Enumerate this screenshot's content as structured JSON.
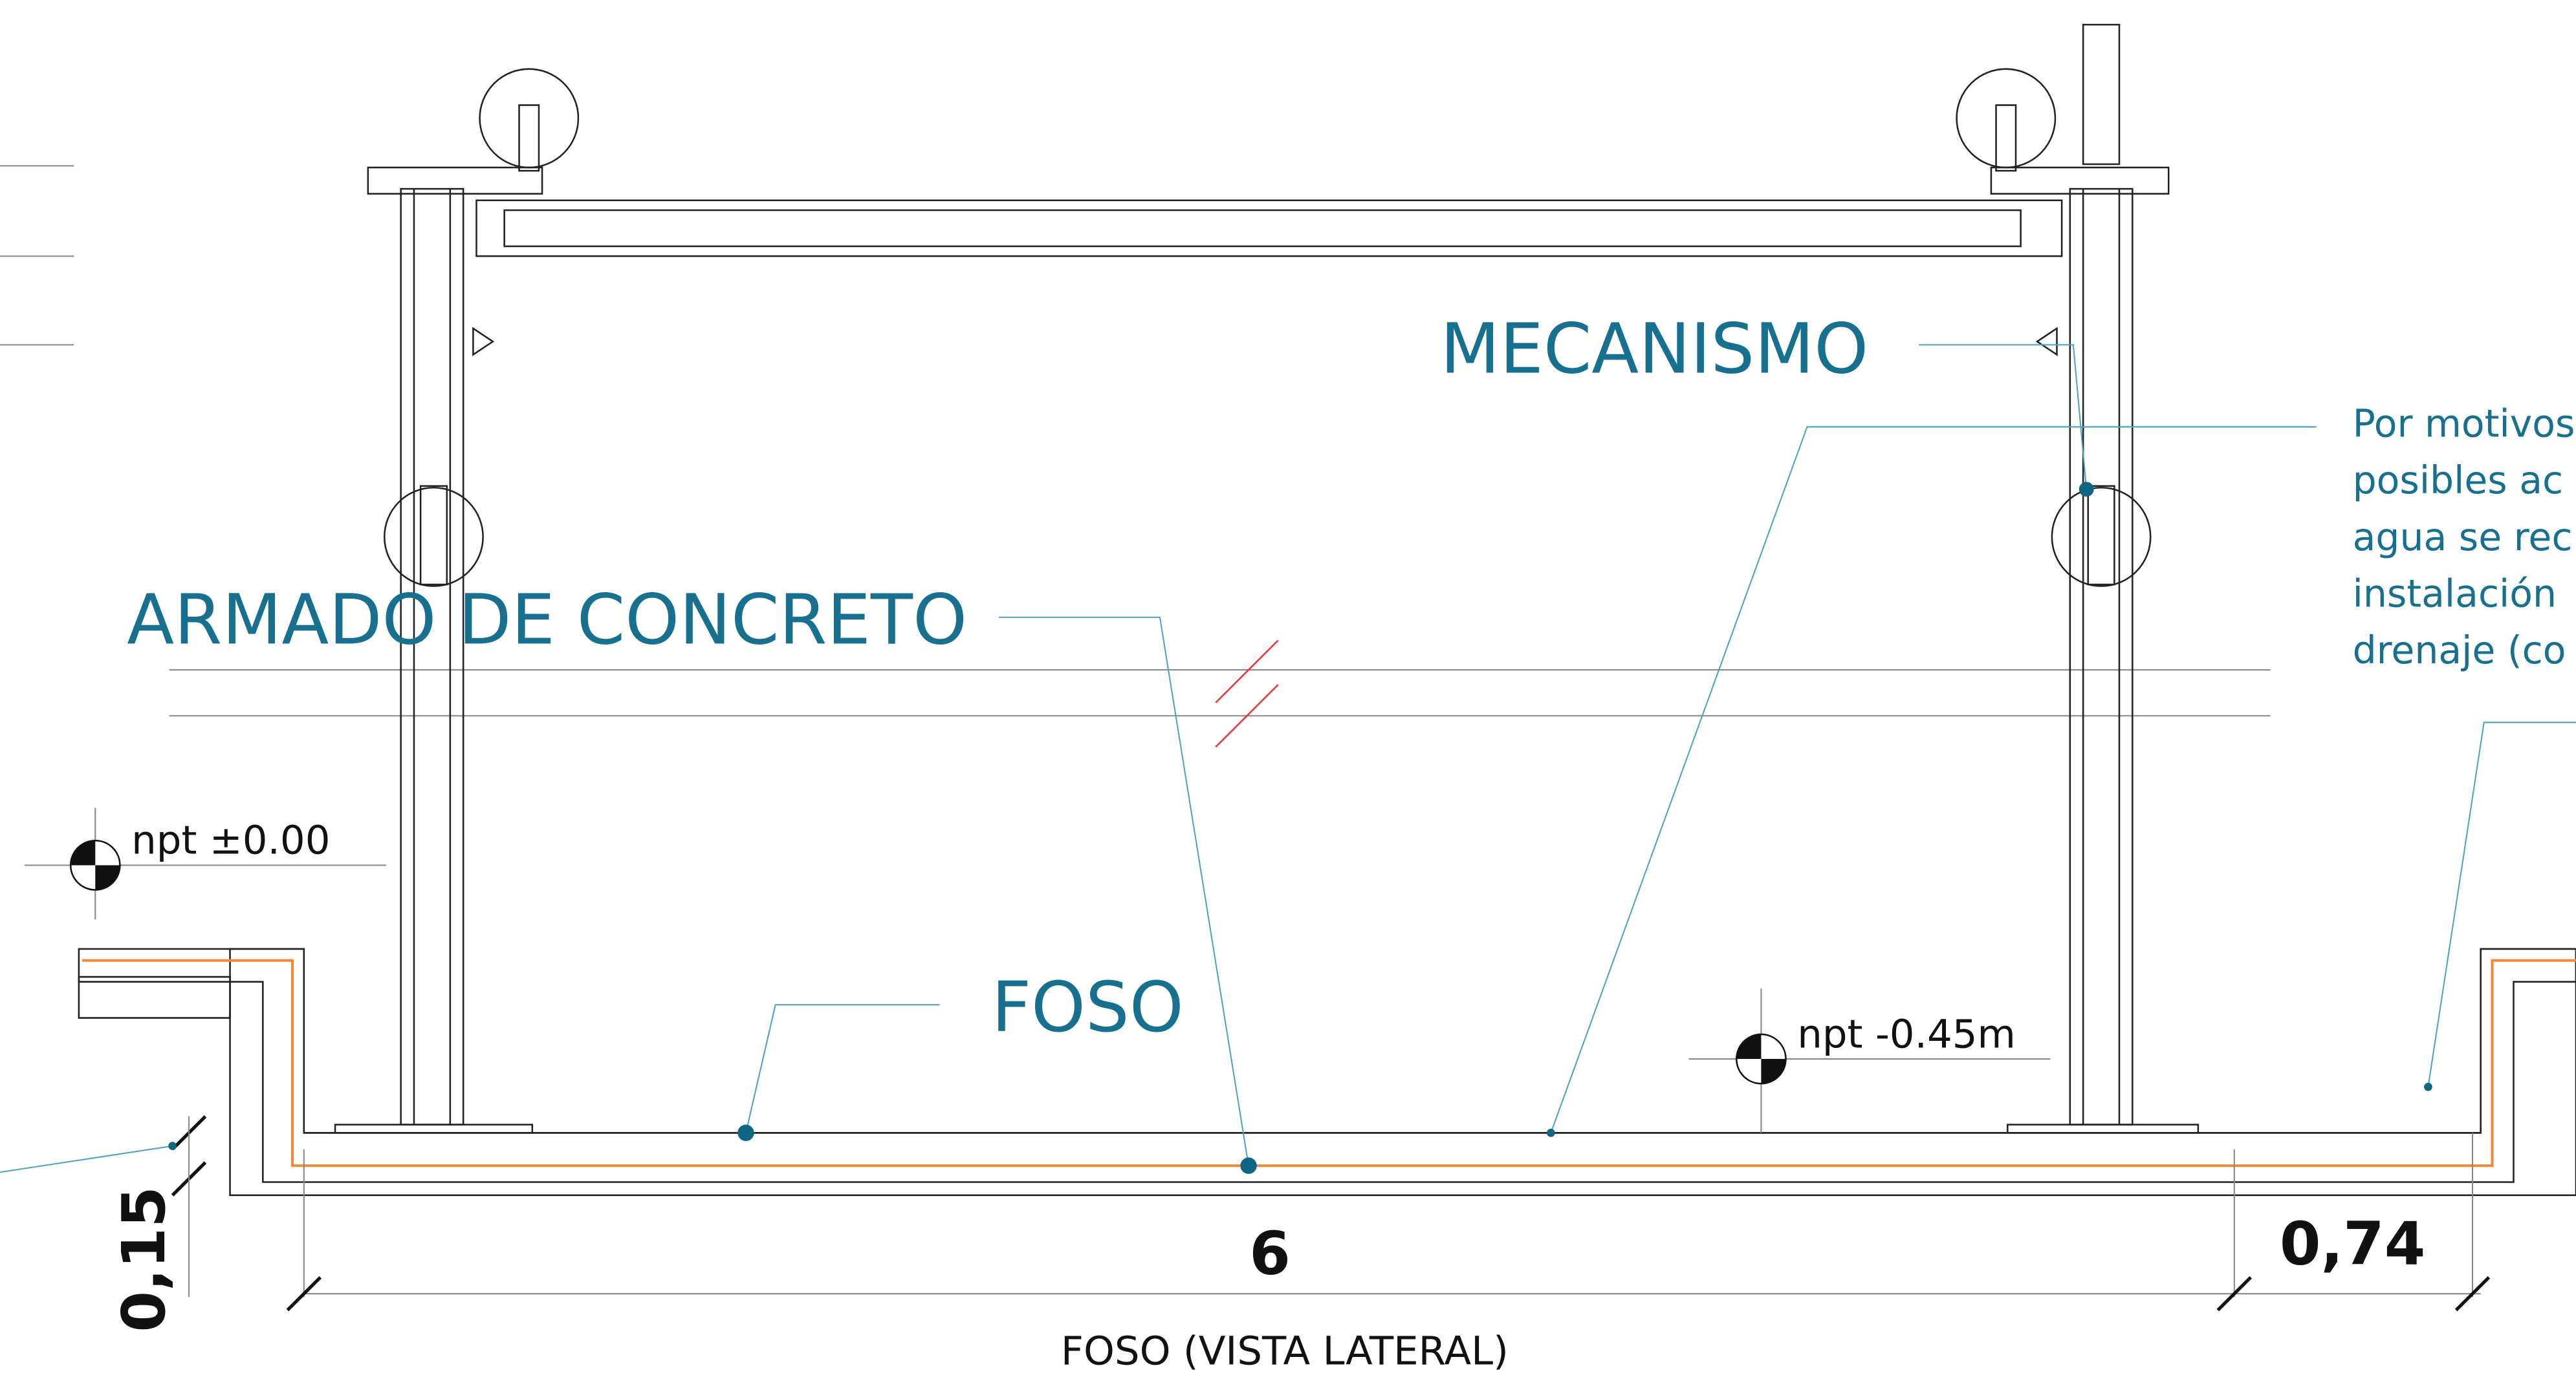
{
  "labels": {
    "mechanism": "MECANISMO",
    "concrete": "ARMADO DE CONCRETO",
    "pit": "FOSO"
  },
  "levels": {
    "ground": "npt ±0.00",
    "pit": "npt -0.45m"
  },
  "note": {
    "lines": [
      "Por motivos",
      "posibles ac",
      "agua se rec",
      "instalación",
      "drenaje (co"
    ]
  },
  "dimensions": {
    "length": "6",
    "wall": "0,74",
    "slab": "0,15"
  },
  "caption": "FOSO (VISTA LATERAL)"
}
